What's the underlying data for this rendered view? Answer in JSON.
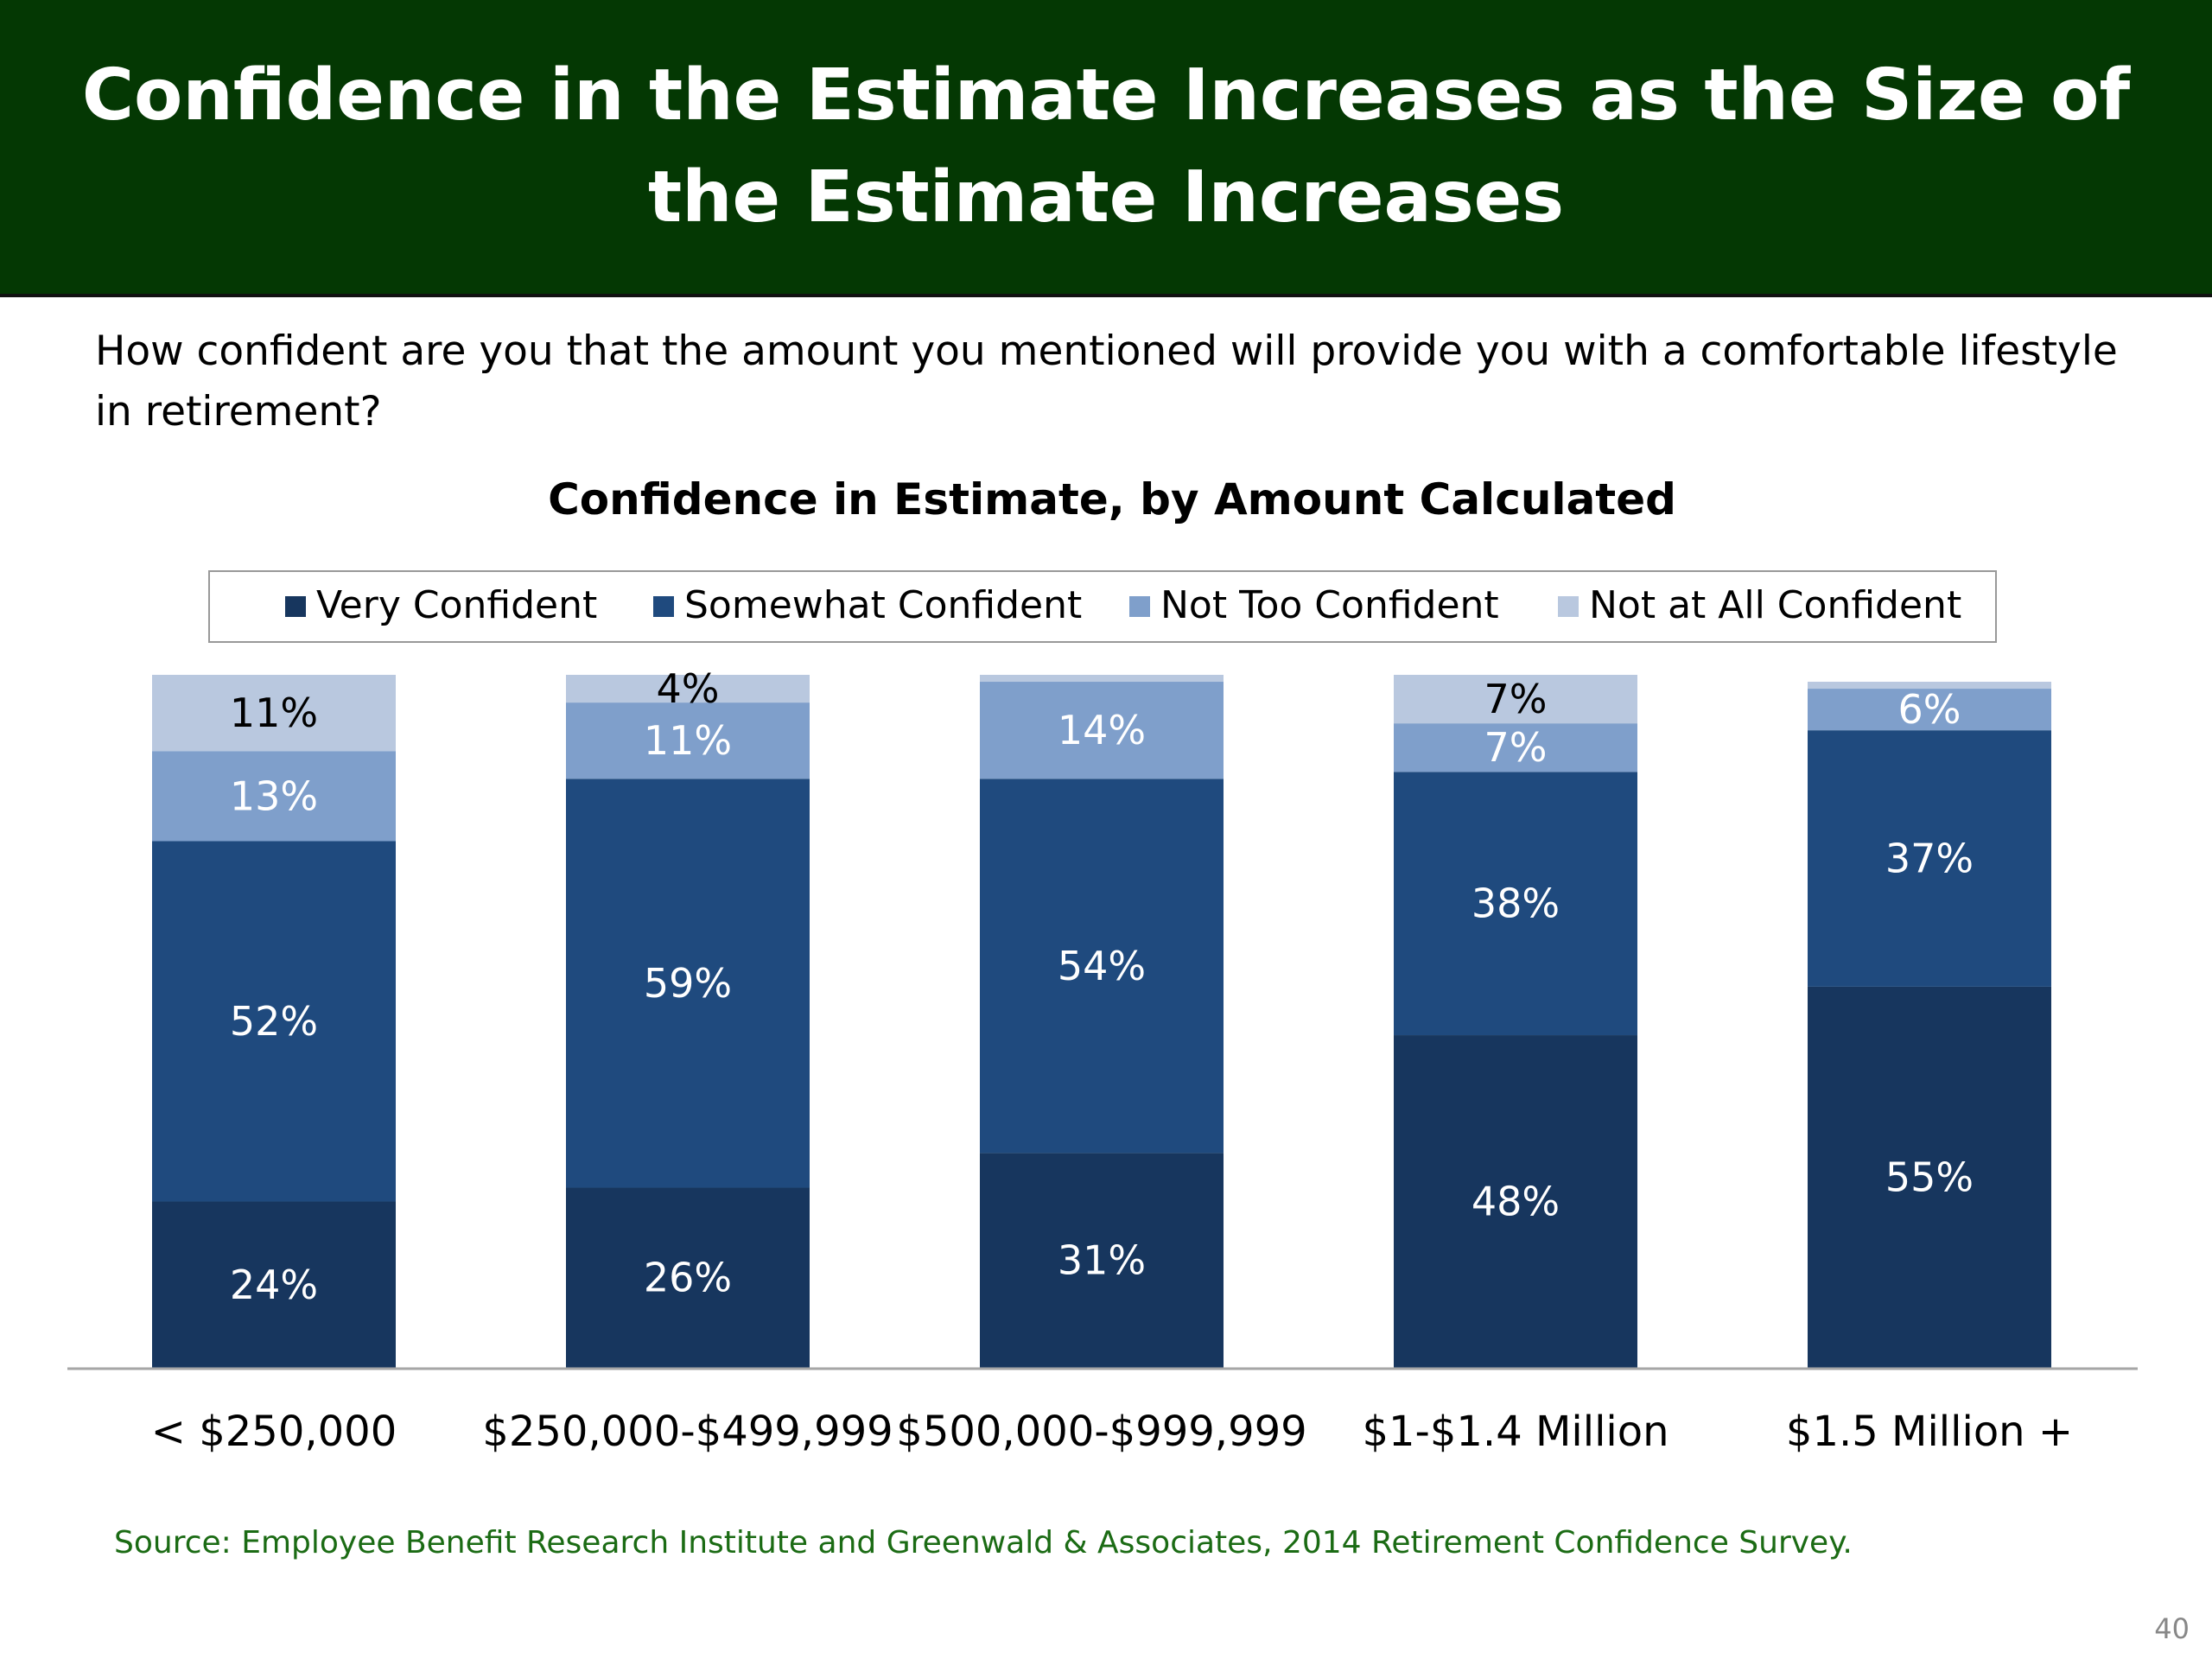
{
  "slide": {
    "title": "Confidence in the Estimate Increases as the Size of the Estimate Increases",
    "question": "How confident are you that the amount you mentioned will provide you with a comfortable lifestyle in retirement?",
    "source": "Source:  Employee Benefit Research Institute and Greenwald & Associates, 2014 Retirement Confidence Survey.",
    "page_number": "40"
  },
  "colors": {
    "banner_bg": "#043803",
    "banner_text": "#ffffff",
    "source_text": "#1b6b14"
  },
  "chart_data": {
    "type": "bar",
    "stacked": true,
    "orientation": "vertical",
    "title": "Confidence in Estimate, by Amount Calculated",
    "xlabel": "",
    "ylabel": "",
    "ylim": [
      0,
      100
    ],
    "grid": false,
    "legend": "top",
    "categories": [
      "< $250,000",
      "$250,000-$499,999",
      "$500,000-$999,999",
      "$1-$1.4 Million",
      "$1.5 Million +"
    ],
    "series": [
      {
        "name": "Very Confident",
        "color": "#17365e",
        "label_color": "#ffffff",
        "values": [
          24,
          26,
          31,
          48,
          55
        ],
        "labels": [
          "24%",
          "26%",
          "31%",
          "48%",
          "55%"
        ]
      },
      {
        "name": "Somewhat Confident",
        "color": "#1f4a7e",
        "label_color": "#ffffff",
        "values": [
          52,
          59,
          54,
          38,
          37
        ],
        "labels": [
          "52%",
          "59%",
          "54%",
          "38%",
          "37%"
        ]
      },
      {
        "name": "Not Too Confident",
        "color": "#7f9fcb",
        "label_color": "#ffffff",
        "values": [
          13,
          11,
          14,
          7,
          6
        ],
        "labels": [
          "13%",
          "11%",
          "14%",
          "7%",
          "6%"
        ]
      },
      {
        "name": "Not at All Confident",
        "color": "#b9c8df",
        "label_color": "#000000",
        "values": [
          11,
          4,
          1,
          7,
          1
        ],
        "labels": [
          "11%",
          "4%",
          "",
          "7%",
          ""
        ]
      }
    ]
  }
}
